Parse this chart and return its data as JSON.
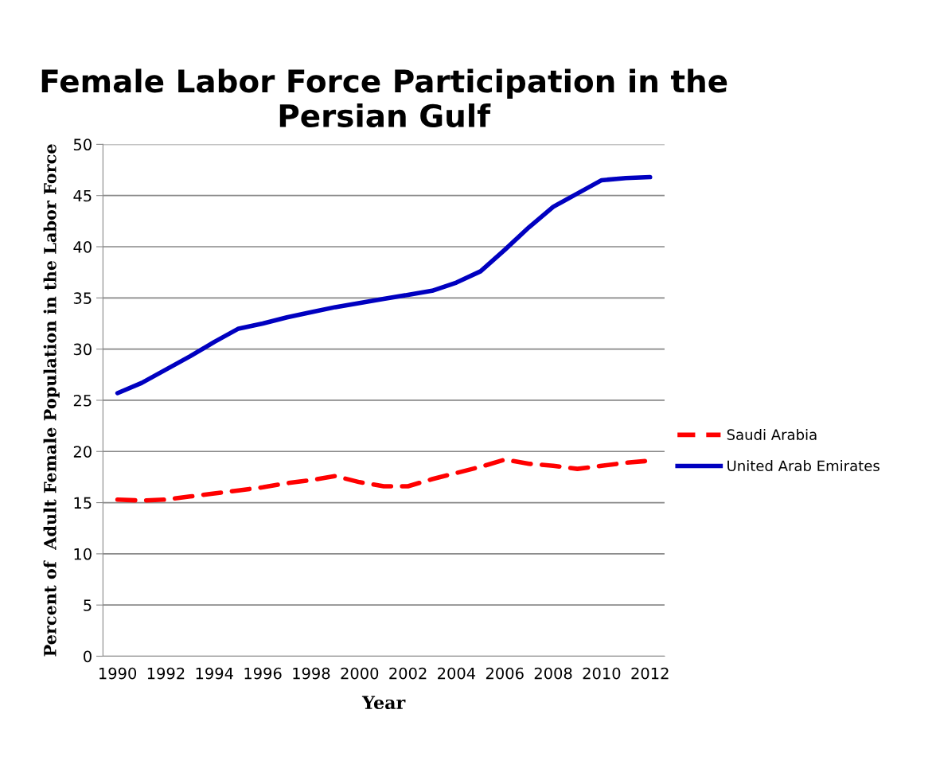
{
  "chart_data": {
    "type": "line",
    "title": "Female Labor Force Participation in the Persian Gulf",
    "xlabel": "Year",
    "ylabel": "Percent of  Adult Female Population in the Labor Force",
    "categories": [
      "1990",
      null,
      "1992",
      null,
      "1994",
      null,
      "1996",
      null,
      "1998",
      null,
      "2000",
      null,
      "2002",
      null,
      "2004",
      null,
      "2006",
      null,
      "2008",
      null,
      "2010",
      null,
      "2012"
    ],
    "series": [
      {
        "name": "Saudi Arabia",
        "color": "#ff0000",
        "line_style": "dashed",
        "values": [
          15.3,
          15.2,
          15.3,
          15.6,
          15.9,
          16.2,
          16.5,
          16.9,
          17.2,
          17.6,
          17.0,
          16.6,
          16.6,
          17.3,
          17.9,
          18.5,
          19.2,
          18.8,
          18.6,
          18.3,
          18.6,
          18.9,
          19.1
        ]
      },
      {
        "name": "United Arab Emirates",
        "color": "#0000c0",
        "line_style": "solid",
        "values": [
          25.7,
          26.7,
          28.0,
          29.3,
          30.7,
          32.0,
          32.5,
          33.1,
          33.6,
          34.1,
          34.5,
          34.9,
          35.3,
          35.7,
          36.5,
          37.6,
          39.7,
          41.9,
          43.9,
          45.2,
          46.5,
          46.7,
          46.8
        ]
      }
    ],
    "ylim": [
      0,
      50
    ],
    "yticks": [
      0,
      5,
      10,
      15,
      20,
      25,
      30,
      35,
      40,
      45,
      50
    ],
    "grid": "y",
    "legend": "right"
  }
}
